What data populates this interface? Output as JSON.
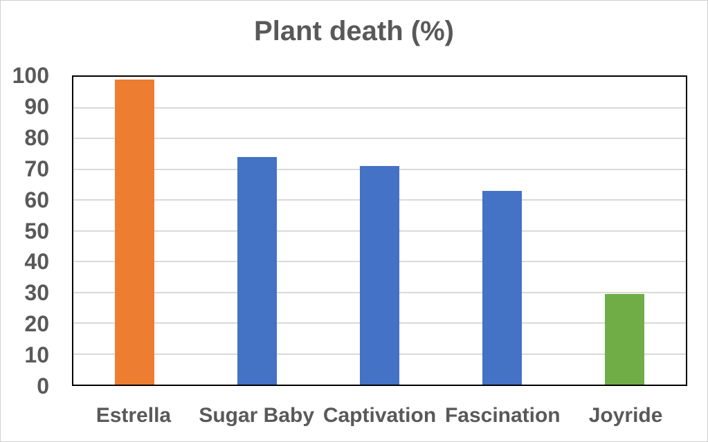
{
  "window": {
    "background": "#FFFFFF",
    "border_color": "#D0D0D0"
  },
  "chart_data": {
    "type": "bar",
    "title": "Plant death (%)",
    "categories": [
      "Estrella",
      "Sugar Baby",
      "Captivation",
      "Fascination",
      "Joyride"
    ],
    "values": [
      99,
      74,
      71,
      63,
      29.5
    ],
    "bar_colors": [
      "#ED7D31",
      "#4472C4",
      "#4472C4",
      "#4472C4",
      "#70AD47"
    ],
    "xlabel": "",
    "ylabel": "",
    "ylim": [
      0,
      100
    ],
    "yticks": [
      0,
      10,
      20,
      30,
      40,
      50,
      60,
      70,
      80,
      90,
      100
    ],
    "grid": "horizontal gridlines every 10, legend none",
    "gridline_color": "#D9D9D9",
    "plot_border_color": "#000000",
    "text_color": "#595959"
  }
}
